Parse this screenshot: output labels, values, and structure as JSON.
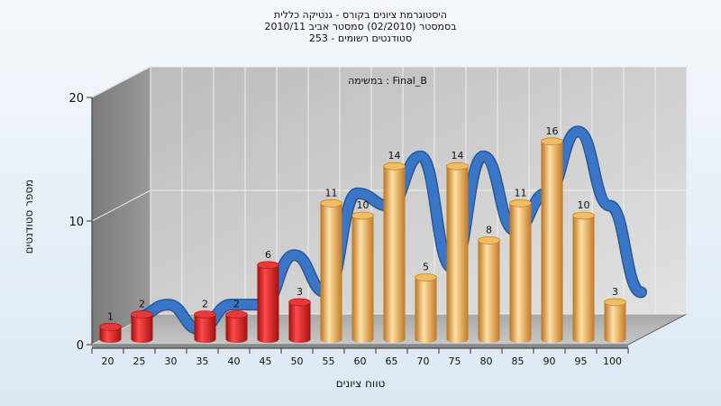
{
  "title_lines": [
    "היסטוגרמת ציונים בקורס - גנטיקה כללית",
    "בסמסטר  (02/2010)  סמסטר אביב 2010/11",
    "סטודנטים רשומים - 253"
  ],
  "chart_data": {
    "type": "bar",
    "annotation": "במשימה : Final_B",
    "xlabel": "טווח ציונים",
    "ylabel": "מספר סטודנטים",
    "ylim": [
      0,
      20
    ],
    "yticks": [
      0,
      10,
      20
    ],
    "xticks": [
      "20",
      "25",
      "30",
      "35",
      "40",
      "45",
      "50",
      "55",
      "60",
      "65",
      "70",
      "75",
      "80",
      "85",
      "90",
      "95",
      "100"
    ],
    "series": [
      {
        "values": [
          1,
          2,
          0,
          2,
          2,
          6,
          3,
          11,
          10,
          14,
          5,
          14,
          8,
          11,
          16,
          10,
          3
        ],
        "colors": [
          "#d81e1e",
          "#d81e1e",
          "#d81e1e",
          "#d81e1e",
          "#d81e1e",
          "#d81e1e",
          "#d81e1e",
          "#e9a741",
          "#e9a741",
          "#e9a741",
          "#e9a741",
          "#e9a741",
          "#e9a741",
          "#e9a741",
          "#e9a741",
          "#e9a741",
          "#e9a741"
        ]
      }
    ],
    "curve_color": "#3a76c8",
    "grid": true
  }
}
